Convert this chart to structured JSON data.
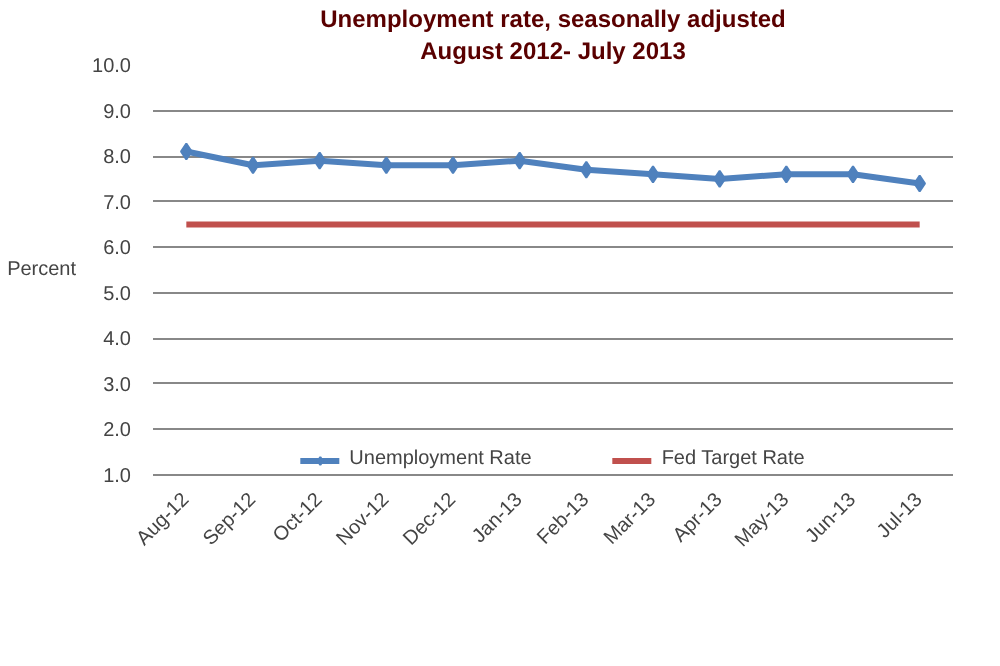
{
  "chart_data": {
    "type": "line",
    "title": "Unemployment rate, seasonally adjusted",
    "subtitle": "August 2012- July 2013",
    "ylabel": "Percent",
    "categories": [
      "Aug-12",
      "Sep-12",
      "Oct-12",
      "Nov-12",
      "Dec-12",
      "Jan-13",
      "Feb-13",
      "Mar-13",
      "Apr-13",
      "May-13",
      "Jun-13",
      "Jul-13"
    ],
    "series": [
      {
        "name": "Unemployment Rate",
        "color": "#4f81bd",
        "marker": "diamond",
        "values": [
          8.1,
          7.8,
          7.9,
          7.8,
          7.8,
          7.9,
          7.7,
          7.6,
          7.5,
          7.6,
          7.6,
          7.4
        ]
      },
      {
        "name": "Fed Target Rate",
        "color": "#c0504d",
        "marker": "none",
        "values": [
          6.5,
          6.5,
          6.5,
          6.5,
          6.5,
          6.5,
          6.5,
          6.5,
          6.5,
          6.5,
          6.5,
          6.5
        ]
      }
    ],
    "ylim": [
      1,
      10
    ],
    "yticks": [
      {
        "value": 1,
        "label": "1.0"
      },
      {
        "value": 2,
        "label": "2.0"
      },
      {
        "value": 3,
        "label": "3.0"
      },
      {
        "value": 4,
        "label": "4.0"
      },
      {
        "value": 5,
        "label": "5.0"
      },
      {
        "value": 6,
        "label": "6.0"
      },
      {
        "value": 7,
        "label": "7.0"
      },
      {
        "value": 8,
        "label": "8.0"
      },
      {
        "value": 9,
        "label": "9.0"
      },
      {
        "value": 10,
        "label": "10.0"
      }
    ],
    "grid": "y",
    "legend": "bottom"
  }
}
